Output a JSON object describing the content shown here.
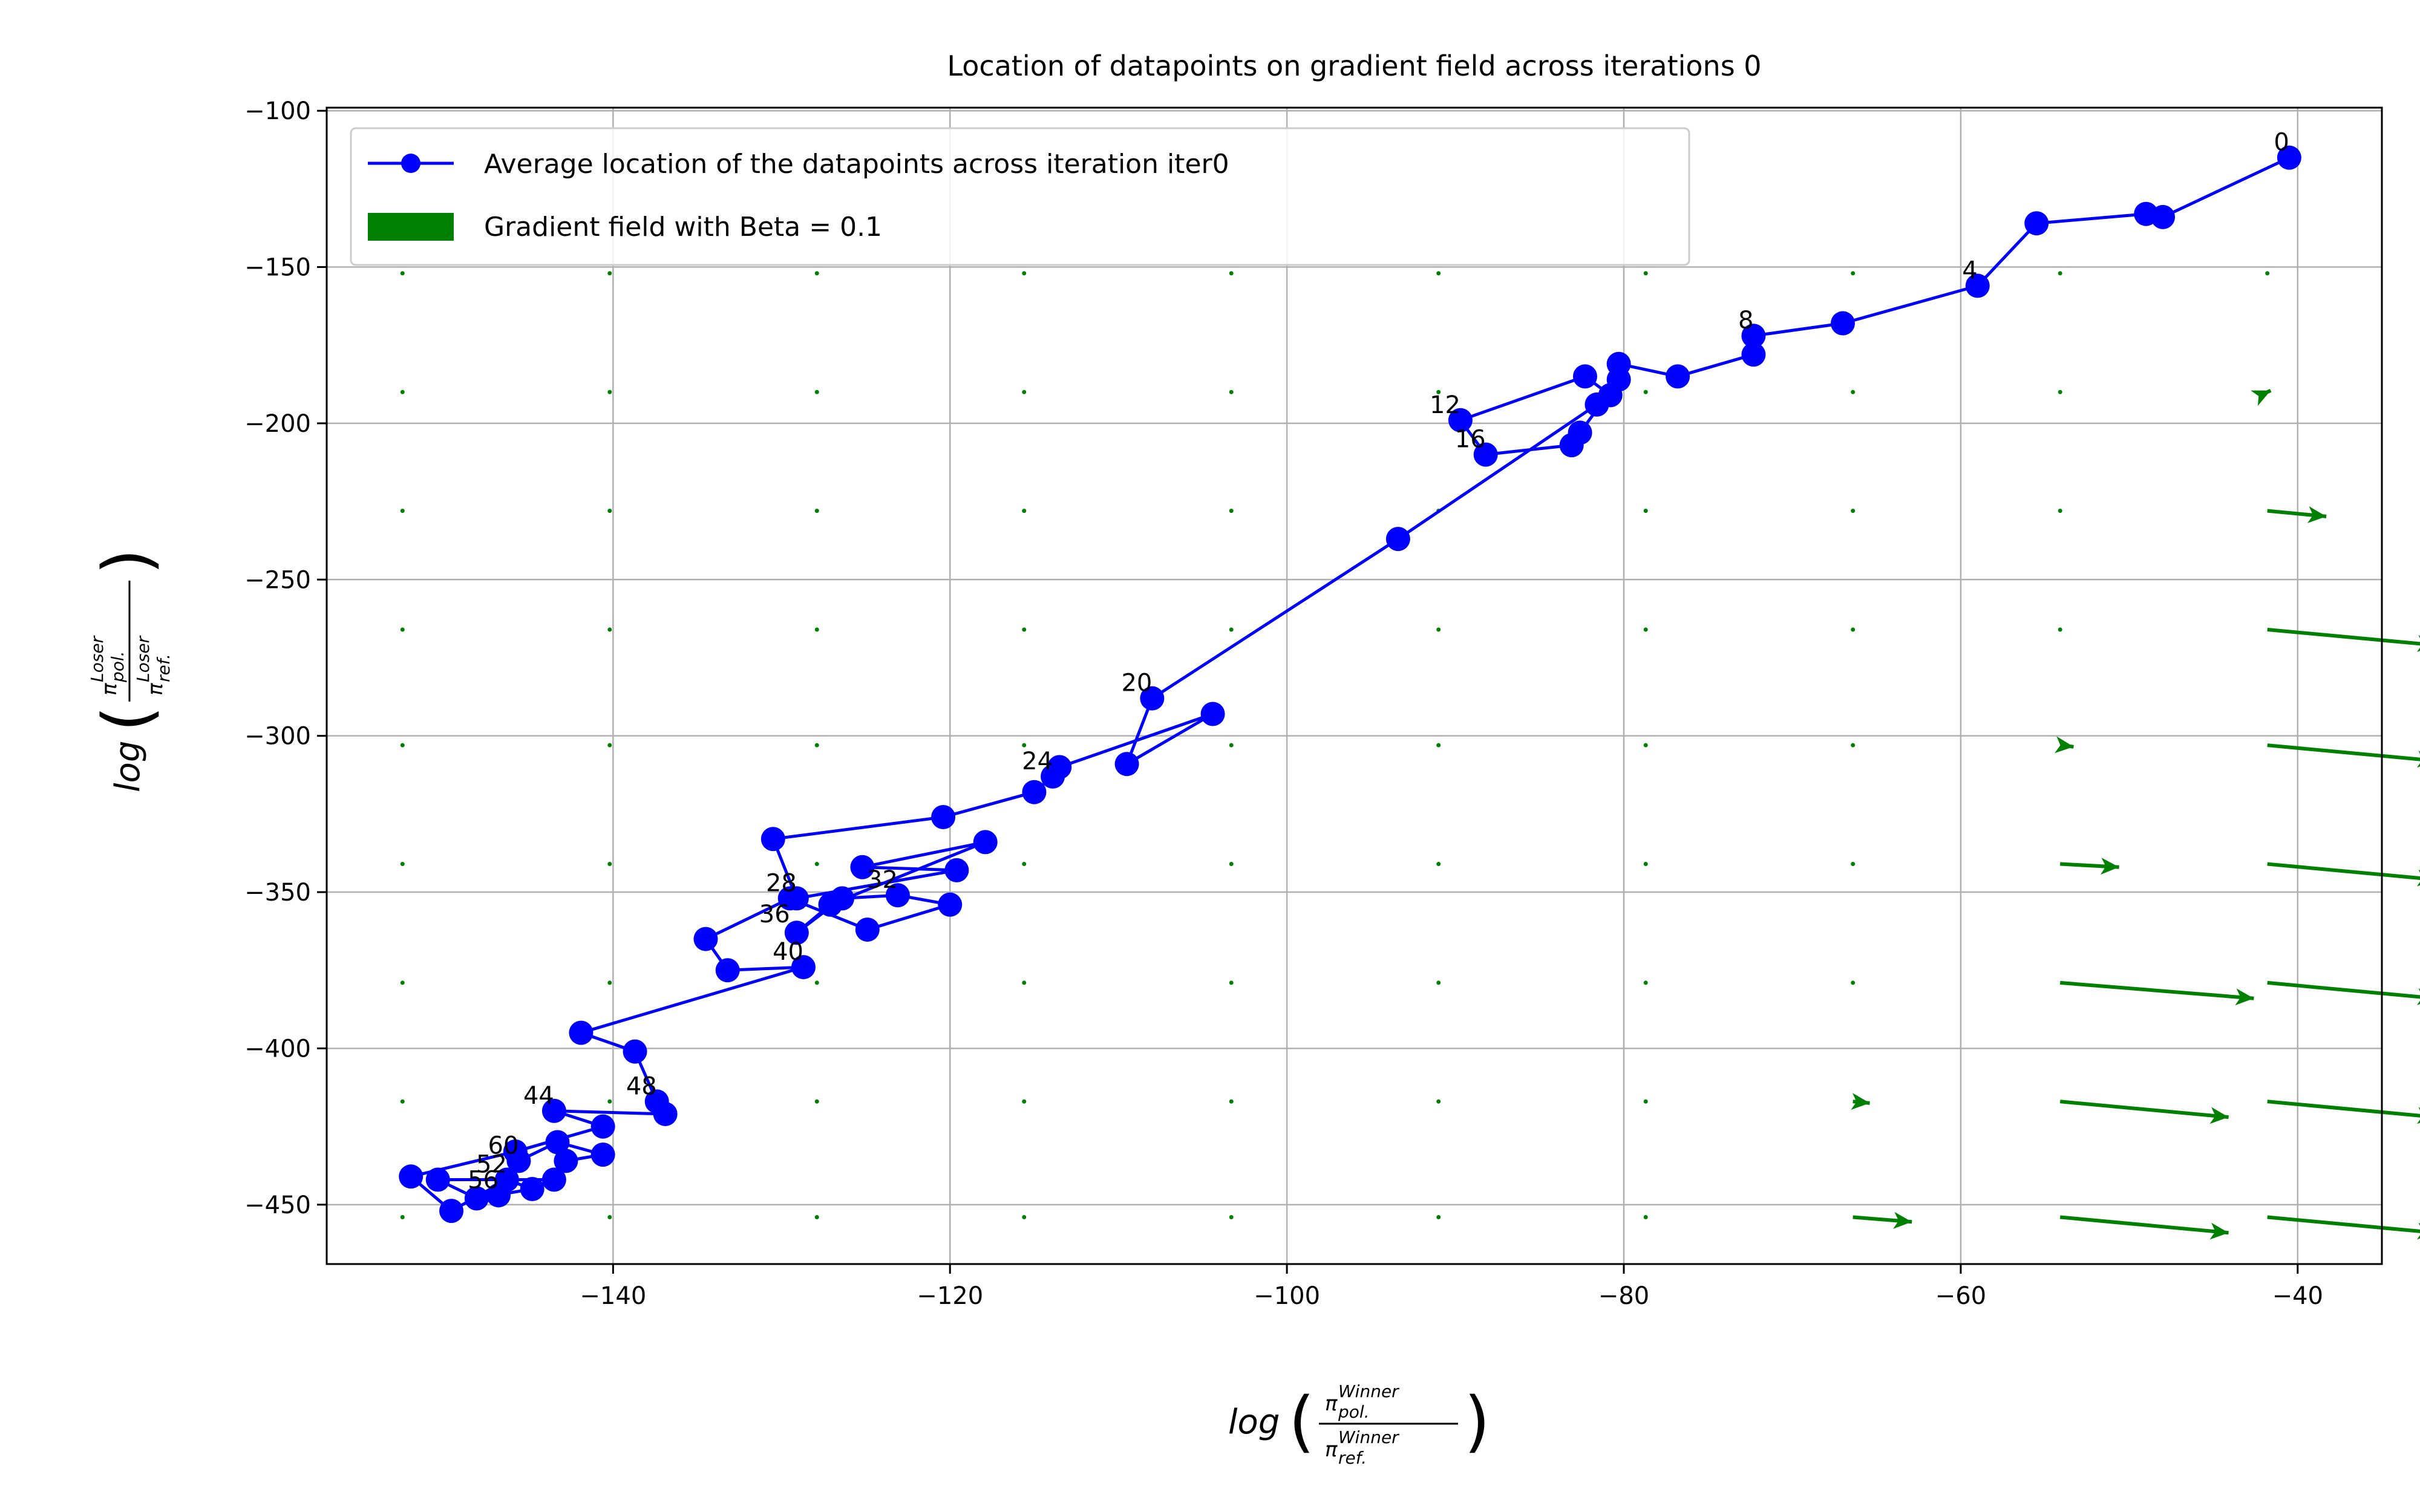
{
  "chart_data": {
    "type": "line",
    "title": "Location of datapoints on gradient field across iterations 0",
    "xlabel": {
      "prefix": "log",
      "numerator": "π",
      "numerator_sub": "pol.",
      "numerator_sup": "Winner",
      "denominator": "π",
      "denominator_sub": "ref.",
      "denominator_sup": "Winner"
    },
    "ylabel": {
      "prefix": "log",
      "numerator": "π",
      "numerator_sub": "pol.",
      "numerator_sup": "Loser",
      "denominator": "π",
      "denominator_sub": "ref.",
      "denominator_sup": "Loser"
    },
    "xlim": [
      -157,
      -35
    ],
    "ylim": [
      -469,
      -99
    ],
    "xticks": [
      -140,
      -120,
      -100,
      -80,
      -60,
      -40
    ],
    "yticks": [
      -100,
      -150,
      -200,
      -250,
      -300,
      -350,
      -400,
      -450
    ],
    "xtick_labels": [
      "−140",
      "−120",
      "−100",
      "−80",
      "−60",
      "−40"
    ],
    "ytick_labels": [
      "−100",
      "−150",
      "−200",
      "−250",
      "−300",
      "−350",
      "−400",
      "−450"
    ],
    "grid": true,
    "legend_placement": "top-left",
    "legend": [
      {
        "label": "Average location of the datapoints across iteration iter0",
        "kind": "line-marker",
        "color": "#0000ff"
      },
      {
        "label": "Gradient field with Beta = 0.1",
        "kind": "patch",
        "color": "#008000"
      }
    ],
    "series": [
      {
        "name": "Average location of the datapoints across iteration iter0",
        "color": "#0000ff",
        "x": [
          -40.5,
          -48,
          -49,
          -55.5,
          -59,
          -67,
          -72.3,
          -72.3,
          -76.8,
          -80.3,
          -80.8,
          -82.3,
          -89.7,
          -88.2,
          -83.1,
          -82.6,
          -80.3,
          -81.6,
          -93.4,
          -108,
          -109.5,
          -104.4,
          -113.5,
          -113.9,
          -115,
          -120.4,
          -130.5,
          -129.1,
          -119.6,
          -125.2,
          -117.9,
          -127.1,
          -129.1,
          -126.4,
          -123.1,
          -120,
          -124.9,
          -129.5,
          -134.5,
          -133.2,
          -128.7,
          -141.9,
          -138.7,
          -137.4,
          -136.9,
          -143.5,
          -140.6,
          -145.8,
          -152,
          -149.6,
          -146.3,
          -144.8,
          -148.1,
          -150.4,
          -143.5,
          -142.8,
          -140.6,
          -143.3,
          -145.6,
          -146.8
        ],
        "y": [
          -115,
          -134,
          -133,
          -136,
          -156,
          -168,
          -172,
          -178,
          -185,
          -181,
          -191,
          -185,
          -199,
          -210,
          -207,
          -203,
          -186,
          -194,
          -237,
          -288,
          -309,
          -293,
          -310,
          -313,
          -318,
          -326,
          -333,
          -352,
          -343,
          -342,
          -334,
          -354,
          -363,
          -352,
          -351,
          -354,
          -362,
          -352,
          -365,
          -375,
          -374,
          -395,
          -401,
          -417,
          -421,
          -420,
          -425,
          -433,
          -441,
          -452,
          -442,
          -445,
          -448,
          -442,
          -442,
          -436,
          -434,
          -430,
          -436,
          -447
        ],
        "point_labels": [
          {
            "text": "0",
            "x": -40.5,
            "y": -115
          },
          {
            "text": "4",
            "x": -59,
            "y": -156
          },
          {
            "text": "8",
            "x": -72.3,
            "y": -172
          },
          {
            "text": "12",
            "x": -89.7,
            "y": -199
          },
          {
            "text": "16",
            "x": -88.2,
            "y": -210
          },
          {
            "text": "20",
            "x": -108,
            "y": -288
          },
          {
            "text": "24",
            "x": -113.9,
            "y": -313
          },
          {
            "text": "28",
            "x": -129.1,
            "y": -352
          },
          {
            "text": "32",
            "x": -123.1,
            "y": -351
          },
          {
            "text": "36",
            "x": -129.5,
            "y": -362
          },
          {
            "text": "40",
            "x": -128.7,
            "y": -374
          },
          {
            "text": "44",
            "x": -143.5,
            "y": -420
          },
          {
            "text": "48",
            "x": -137.4,
            "y": -417
          },
          {
            "text": "52",
            "x": -146.3,
            "y": -442
          },
          {
            "text": "56",
            "x": -146.8,
            "y": -447
          },
          {
            "text": "60",
            "x": -145.6,
            "y": -436
          }
        ]
      }
    ],
    "gradient_field": {
      "name": "Gradient field with Beta = 0.1",
      "color": "#008000",
      "grid_x": [
        -152.5,
        -140.2,
        -127.9,
        -115.6,
        -103.3,
        -91,
        -78.7,
        -66.4,
        -54.1,
        -41.8
      ],
      "grid_y": [
        -152,
        -190,
        -228,
        -266,
        -303,
        -341,
        -379,
        -417,
        -454
      ],
      "arrows": [
        {
          "x": -41.8,
          "y": -190,
          "dx": 0.2,
          "dy": 0.5
        },
        {
          "x": -41.8,
          "y": -228,
          "dx": 3.5,
          "dy": -1.8
        },
        {
          "x": -41.8,
          "y": -266,
          "dx": 10,
          "dy": -5
        },
        {
          "x": -41.8,
          "y": -303,
          "dx": 10,
          "dy": -5
        },
        {
          "x": -41.8,
          "y": -341,
          "dx": 10,
          "dy": -5
        },
        {
          "x": -41.8,
          "y": -379,
          "dx": 10,
          "dy": -5
        },
        {
          "x": -41.8,
          "y": -417,
          "dx": 10,
          "dy": -5
        },
        {
          "x": -41.8,
          "y": -454,
          "dx": 10,
          "dy": -5
        },
        {
          "x": -54.1,
          "y": -303,
          "dx": 0.8,
          "dy": -0.5
        },
        {
          "x": -54.1,
          "y": -341,
          "dx": 3.5,
          "dy": -1
        },
        {
          "x": -54.1,
          "y": -379,
          "dx": 11.5,
          "dy": -5
        },
        {
          "x": -54.1,
          "y": -417,
          "dx": 10,
          "dy": -5
        },
        {
          "x": -54.1,
          "y": -454,
          "dx": 10,
          "dy": -5
        },
        {
          "x": -66.4,
          "y": -417,
          "dx": 1,
          "dy": -0.5
        },
        {
          "x": -66.4,
          "y": -454,
          "dx": 3.5,
          "dy": -1.5
        }
      ]
    }
  }
}
